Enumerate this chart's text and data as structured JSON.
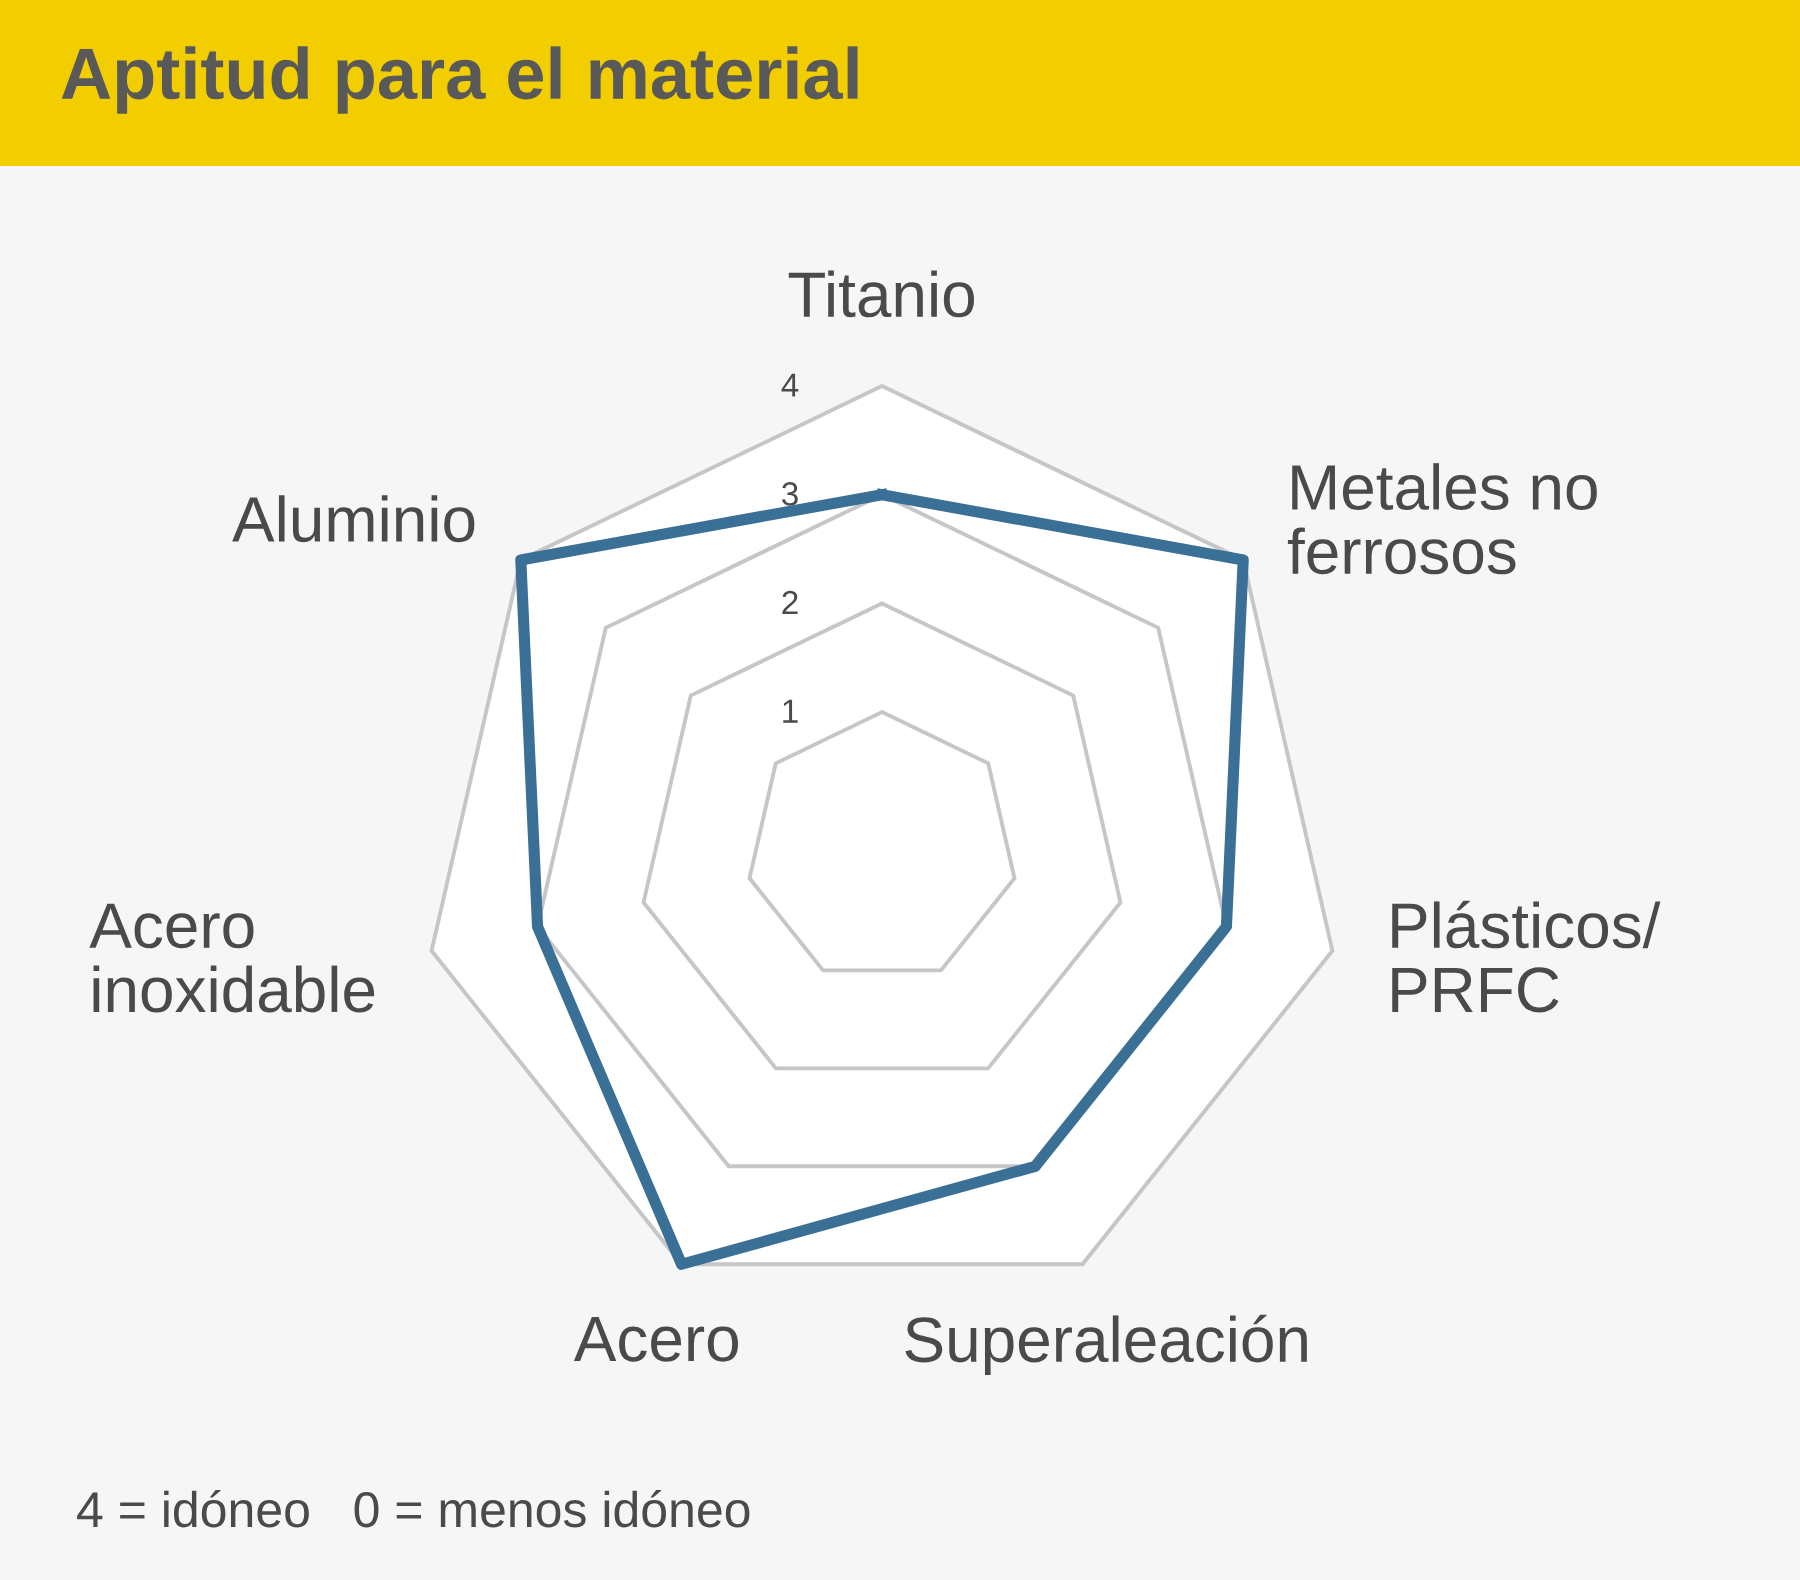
{
  "chart_data": {
    "type": "radar",
    "title": "Aptitud para el material",
    "categories": [
      "Titanio",
      "Metales no\nferrosos",
      "Plásticos/\nPRFC",
      "Superaleación",
      "Acero",
      "Acero\ninoxidable",
      "Aluminio"
    ],
    "series": [
      {
        "color": "#3a6f96",
        "values": [
          3,
          4,
          3,
          3,
          4,
          3,
          4
        ]
      }
    ],
    "ylim": [
      -0.25,
      4
    ],
    "yticks": [
      1,
      2,
      3,
      4
    ],
    "grid": true,
    "marker": "none",
    "line_style": "solid",
    "annotations": [
      "4 = idóneo   0 = menos idóneo"
    ]
  }
}
